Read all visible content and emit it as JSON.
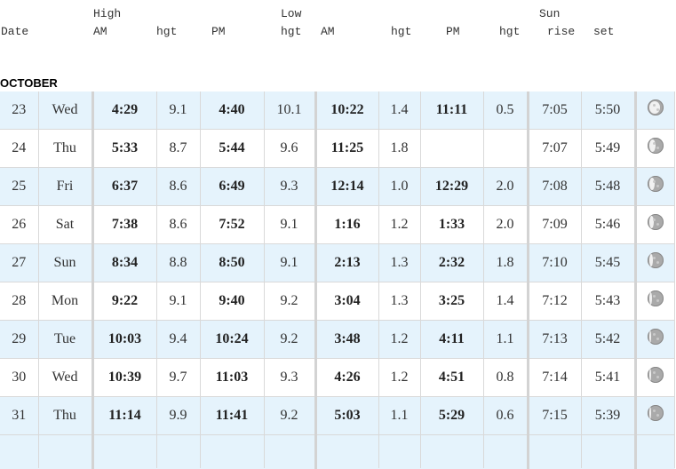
{
  "header": {
    "row1": {
      "high": "High",
      "low": "Low",
      "sun": "Sun"
    },
    "row2": {
      "date": "Date",
      "high_am": "AM",
      "high_am_hgt": "hgt",
      "high_pm": "PM",
      "high_pm_hgt": "hgt",
      "low_am": "AM",
      "low_am_hgt": "hgt",
      "low_pm": "PM",
      "low_pm_hgt": "hgt",
      "sunrise": "rise",
      "sunset": "set"
    }
  },
  "month": "OCTOBER",
  "rows": [
    {
      "day": "23",
      "dow": "Wed",
      "high_am": "4:29",
      "high_am_hgt": "9.1",
      "high_pm": "4:40",
      "high_pm_hgt": "10.1",
      "low_am": "10:22",
      "low_am_hgt": "1.4",
      "low_pm": "11:11",
      "low_pm_hgt": "0.5",
      "sunrise": "7:05",
      "sunset": "5:50",
      "moon_icon": "moon-waning-gibbous-icon",
      "moon_illumination": 0.85
    },
    {
      "day": "24",
      "dow": "Thu",
      "high_am": "5:33",
      "high_am_hgt": "8.7",
      "high_pm": "5:44",
      "high_pm_hgt": "9.6",
      "low_am": "11:25",
      "low_am_hgt": "1.8",
      "low_pm": "",
      "low_pm_hgt": "",
      "sunrise": "7:07",
      "sunset": "5:49",
      "moon_icon": "moon-last-quarter-icon",
      "moon_illumination": 0.5
    },
    {
      "day": "25",
      "dow": "Fri",
      "high_am": "6:37",
      "high_am_hgt": "8.6",
      "high_pm": "6:49",
      "high_pm_hgt": "9.3",
      "low_am": "12:14",
      "low_am_hgt": "1.0",
      "low_pm": "12:29",
      "low_pm_hgt": "2.0",
      "sunrise": "7:08",
      "sunset": "5:48",
      "moon_icon": "moon-last-quarter-icon",
      "moon_illumination": 0.45
    },
    {
      "day": "26",
      "dow": "Sat",
      "high_am": "7:38",
      "high_am_hgt": "8.6",
      "high_pm": "7:52",
      "high_pm_hgt": "9.1",
      "low_am": "1:16",
      "low_am_hgt": "1.2",
      "low_pm": "1:33",
      "low_pm_hgt": "2.0",
      "sunrise": "7:09",
      "sunset": "5:46",
      "moon_icon": "moon-waning-crescent-icon",
      "moon_illumination": 0.38
    },
    {
      "day": "27",
      "dow": "Sun",
      "high_am": "8:34",
      "high_am_hgt": "8.8",
      "high_pm": "8:50",
      "high_pm_hgt": "9.1",
      "low_am": "2:13",
      "low_am_hgt": "1.3",
      "low_pm": "2:32",
      "low_pm_hgt": "1.8",
      "sunrise": "7:10",
      "sunset": "5:45",
      "moon_icon": "moon-waning-crescent-icon",
      "moon_illumination": 0.3
    },
    {
      "day": "28",
      "dow": "Mon",
      "high_am": "9:22",
      "high_am_hgt": "9.1",
      "high_pm": "9:40",
      "high_pm_hgt": "9.2",
      "low_am": "3:04",
      "low_am_hgt": "1.3",
      "low_pm": "3:25",
      "low_pm_hgt": "1.4",
      "sunrise": "7:12",
      "sunset": "5:43",
      "moon_icon": "moon-waning-crescent-icon",
      "moon_illumination": 0.22
    },
    {
      "day": "29",
      "dow": "Tue",
      "high_am": "10:03",
      "high_am_hgt": "9.4",
      "high_pm": "10:24",
      "high_pm_hgt": "9.2",
      "low_am": "3:48",
      "low_am_hgt": "1.2",
      "low_pm": "4:11",
      "low_pm_hgt": "1.1",
      "sunrise": "7:13",
      "sunset": "5:42",
      "moon_icon": "moon-waning-crescent-icon",
      "moon_illumination": 0.15
    },
    {
      "day": "30",
      "dow": "Wed",
      "high_am": "10:39",
      "high_am_hgt": "9.7",
      "high_pm": "11:03",
      "high_pm_hgt": "9.3",
      "low_am": "4:26",
      "low_am_hgt": "1.2",
      "low_pm": "4:51",
      "low_pm_hgt": "0.8",
      "sunrise": "7:14",
      "sunset": "5:41",
      "moon_icon": "moon-waning-crescent-icon",
      "moon_illumination": 0.1
    },
    {
      "day": "31",
      "dow": "Thu",
      "high_am": "11:14",
      "high_am_hgt": "9.9",
      "high_pm": "11:41",
      "high_pm_hgt": "9.2",
      "low_am": "5:03",
      "low_am_hgt": "1.1",
      "low_pm": "5:29",
      "low_pm_hgt": "0.6",
      "sunrise": "7:15",
      "sunset": "5:39",
      "moon_icon": "moon-waning-crescent-icon",
      "moon_illumination": 0.05
    }
  ],
  "colors": {
    "row_alt": "#e5f3fc",
    "row_plain": "#ffffff",
    "grid": "#d9d9d9",
    "divider": "#d3d3d3"
  }
}
